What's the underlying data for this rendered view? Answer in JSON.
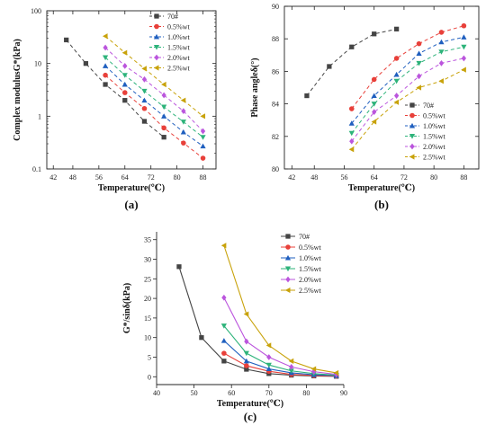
{
  "chart_data": [
    {
      "id": "a",
      "type": "line",
      "panel_label": "(a)",
      "xlabel": "Temperature(℃)",
      "ylabel": "Complex modulusG*(kPa)",
      "xlim": [
        40,
        92
      ],
      "ylim": [
        0.1,
        100
      ],
      "yscale": "log",
      "x_ticks": [
        42,
        48,
        56,
        64,
        72,
        80,
        88
      ],
      "x_tick_labels": [
        "42",
        "48",
        "56",
        "64",
        "72",
        "80",
        "88"
      ],
      "y_ticks": [
        0.1,
        1,
        10,
        100
      ],
      "y_tick_labels": [
        "0.1",
        "1",
        "10",
        "100"
      ],
      "legend_position": "top-right",
      "line_style": "dashed",
      "series": [
        {
          "name": "70#",
          "color": "#444444",
          "marker": "square",
          "x": [
            46,
            52,
            58,
            64,
            70,
            76
          ],
          "y": [
            28,
            10,
            4.0,
            2.0,
            0.8,
            0.4
          ]
        },
        {
          "name": "0.5%wt",
          "color": "#e8403a",
          "marker": "circle",
          "x": [
            58,
            64,
            70,
            76,
            82,
            88
          ],
          "y": [
            6.0,
            2.8,
            1.4,
            0.6,
            0.31,
            0.16
          ]
        },
        {
          "name": "1.0%wt",
          "color": "#1f5fbf",
          "marker": "triangle-up",
          "x": [
            58,
            64,
            70,
            76,
            82,
            88
          ],
          "y": [
            9.0,
            4.0,
            2.0,
            1.0,
            0.5,
            0.27
          ]
        },
        {
          "name": "1.5%wt",
          "color": "#2db37a",
          "marker": "triangle-down",
          "x": [
            58,
            64,
            70,
            76,
            82,
            88
          ],
          "y": [
            13.0,
            6.0,
            3.0,
            1.5,
            0.78,
            0.4
          ]
        },
        {
          "name": "2.0%wt",
          "color": "#bb55dd",
          "marker": "diamond",
          "x": [
            58,
            64,
            70,
            76,
            82,
            88
          ],
          "y": [
            20.0,
            9.0,
            5.0,
            2.5,
            1.25,
            0.52
          ]
        },
        {
          "name": "2.5%wt",
          "color": "#c8a20a",
          "marker": "triangle-left",
          "x": [
            58,
            64,
            70,
            76,
            82,
            88
          ],
          "y": [
            33.0,
            16.0,
            8.0,
            4.0,
            2.0,
            1.0
          ]
        }
      ]
    },
    {
      "id": "b",
      "type": "line",
      "panel_label": "(b)",
      "xlabel": "Temperature(℃)",
      "ylabel": "Phase angleδ(°)",
      "xlim": [
        40,
        92
      ],
      "ylim": [
        80,
        90
      ],
      "yscale": "linear",
      "x_ticks": [
        42,
        48,
        56,
        64,
        72,
        80,
        88
      ],
      "x_tick_labels": [
        "42",
        "48",
        "56",
        "64",
        "72",
        "80",
        "88"
      ],
      "y_ticks": [
        80,
        82,
        84,
        86,
        88,
        90
      ],
      "y_tick_labels": [
        "80",
        "82",
        "84",
        "86",
        "88",
        "90"
      ],
      "legend_position": "bottom-right",
      "line_style": "dashed",
      "series": [
        {
          "name": "70#",
          "color": "#444444",
          "marker": "square",
          "x": [
            46,
            52,
            58,
            64,
            70
          ],
          "y": [
            84.5,
            86.3,
            87.5,
            88.3,
            88.6
          ]
        },
        {
          "name": "0.5%wt",
          "color": "#e8403a",
          "marker": "circle",
          "x": [
            58,
            64,
            70,
            76,
            82,
            88
          ],
          "y": [
            83.7,
            85.5,
            86.8,
            87.7,
            88.4,
            88.8
          ]
        },
        {
          "name": "1.0%wt",
          "color": "#1f5fbf",
          "marker": "triangle-up",
          "x": [
            58,
            64,
            70,
            76,
            82,
            88
          ],
          "y": [
            82.8,
            84.5,
            85.8,
            87.1,
            87.8,
            88.1
          ]
        },
        {
          "name": "1.5%wt",
          "color": "#2db37a",
          "marker": "triangle-down",
          "x": [
            58,
            64,
            70,
            76,
            82,
            88
          ],
          "y": [
            82.2,
            84.0,
            85.4,
            86.5,
            87.2,
            87.5
          ]
        },
        {
          "name": "2.0%wt",
          "color": "#bb55dd",
          "marker": "diamond",
          "x": [
            58,
            64,
            70,
            76,
            82,
            88
          ],
          "y": [
            81.7,
            83.5,
            84.5,
            85.7,
            86.5,
            86.8
          ]
        },
        {
          "name": "2.5%wt",
          "color": "#c8a20a",
          "marker": "triangle-left",
          "x": [
            58,
            64,
            70,
            76,
            82,
            88
          ],
          "y": [
            81.2,
            82.9,
            84.1,
            85.0,
            85.4,
            86.1
          ]
        }
      ]
    },
    {
      "id": "c",
      "type": "line",
      "panel_label": "(c)",
      "xlabel": "Temperature(℃)",
      "ylabel": "G*/sinδ(kPa)",
      "xlim": [
        40,
        90
      ],
      "ylim": [
        -2,
        37
      ],
      "yscale": "linear",
      "x_ticks": [
        40,
        50,
        60,
        70,
        80,
        90
      ],
      "x_tick_labels": [
        "40",
        "50",
        "60",
        "70",
        "80",
        "90"
      ],
      "y_ticks": [
        0,
        5,
        10,
        15,
        20,
        25,
        30,
        35
      ],
      "y_tick_labels": [
        "0",
        "5",
        "10",
        "15",
        "20",
        "25",
        "30",
        "35"
      ],
      "legend_position": "top-right",
      "line_style": "solid",
      "series": [
        {
          "name": "70#",
          "color": "#444444",
          "marker": "square",
          "x": [
            46,
            52,
            58,
            64,
            70,
            76,
            82,
            88
          ],
          "y": [
            28.1,
            10.0,
            4.0,
            1.9,
            0.8,
            0.4,
            0.2,
            0.1
          ]
        },
        {
          "name": "0.5%wt",
          "color": "#e8403a",
          "marker": "circle",
          "x": [
            58,
            64,
            70,
            76,
            82,
            88
          ],
          "y": [
            6.0,
            2.8,
            1.4,
            0.6,
            0.3,
            0.16
          ]
        },
        {
          "name": "1.0%wt",
          "color": "#1f5fbf",
          "marker": "triangle-up",
          "x": [
            58,
            64,
            70,
            76,
            82,
            88
          ],
          "y": [
            9.2,
            4.0,
            2.0,
            1.0,
            0.5,
            0.27
          ]
        },
        {
          "name": "1.5%wt",
          "color": "#2db37a",
          "marker": "triangle-down",
          "x": [
            58,
            64,
            70,
            76,
            82,
            88
          ],
          "y": [
            13.0,
            6.0,
            3.0,
            1.5,
            0.8,
            0.4
          ]
        },
        {
          "name": "2.0%wt",
          "color": "#bb55dd",
          "marker": "diamond",
          "x": [
            58,
            64,
            70,
            76,
            82,
            88
          ],
          "y": [
            20.2,
            9.0,
            5.0,
            2.5,
            1.3,
            0.6
          ]
        },
        {
          "name": "2.5%wt",
          "color": "#c8a20a",
          "marker": "triangle-left",
          "x": [
            58,
            64,
            70,
            76,
            82,
            88
          ],
          "y": [
            33.5,
            16.0,
            8.0,
            4.0,
            2.0,
            1.0
          ]
        }
      ]
    }
  ]
}
